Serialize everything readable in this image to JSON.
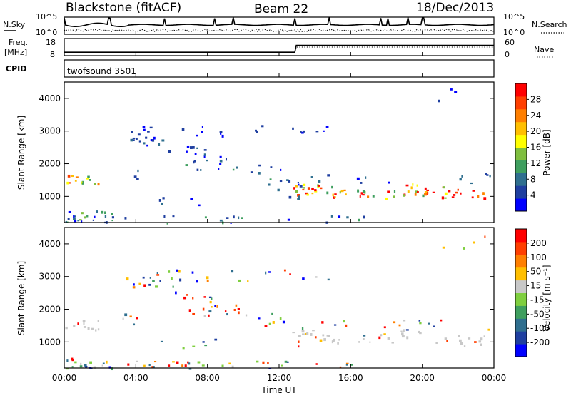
{
  "header": {
    "station": "Blackstone (fitACF)",
    "beam": "Beam 22",
    "date": "18/Dec/2013"
  },
  "top_panel": {
    "left_label": "N.Sky",
    "right_label": "N.Search",
    "left_ticks": [
      "10^5",
      "10^0"
    ],
    "right_ticks": [
      "10^5",
      "10^0"
    ]
  },
  "freq_panel": {
    "left_label_1": "Freq.",
    "left_label_2": "[MHz]",
    "right_label": "Nave",
    "left_ticks": [
      "18",
      "8"
    ],
    "right_ticks": [
      "60",
      "0"
    ]
  },
  "cpid_panel": {
    "left_label": "CPID",
    "program": "twofsound 3501"
  },
  "chart_data": [
    {
      "type": "heatmap",
      "title": "",
      "xlabel": "Time UT",
      "ylabel": "Slant Range [km]",
      "ylim": [
        200,
        4500
      ],
      "x_ticks": [
        "00:00",
        "04:00",
        "08:00",
        "12:00",
        "16:00",
        "20:00",
        "00:00"
      ],
      "y_ticks": [
        1000,
        2000,
        3000,
        4000
      ],
      "colorbar": {
        "label": "Power [dB]",
        "ticks": [
          28,
          24,
          20,
          16,
          12,
          8,
          4
        ],
        "colors": [
          "#0000ff",
          "#1f3fa0",
          "#2f6f8f",
          "#3f9f5f",
          "#7fbf3f",
          "#ffff00",
          "#ffbf00",
          "#ff7f00",
          "#ff3f00",
          "#ff0000"
        ]
      }
    },
    {
      "type": "heatmap",
      "title": "",
      "xlabel": "Time UT",
      "ylabel": "Slant Range [km]",
      "ylim": [
        200,
        4500
      ],
      "x_ticks": [
        "00:00",
        "04:00",
        "08:00",
        "12:00",
        "16:00",
        "20:00",
        "00:00"
      ],
      "y_ticks": [
        1000,
        2000,
        3000,
        4000
      ],
      "colorbar": {
        "label": "Velocity [m s⁻¹]",
        "ticks": [
          200,
          100,
          50,
          15,
          -15,
          -50,
          -100,
          -200
        ],
        "colors": [
          "#0000ff",
          "#1f3fa0",
          "#2f6f8f",
          "#3f9f5f",
          "#7fcf3f",
          "#c8c8c8",
          "#ffbf00",
          "#ff7f00",
          "#ff3f00",
          "#ff0000"
        ]
      }
    }
  ]
}
